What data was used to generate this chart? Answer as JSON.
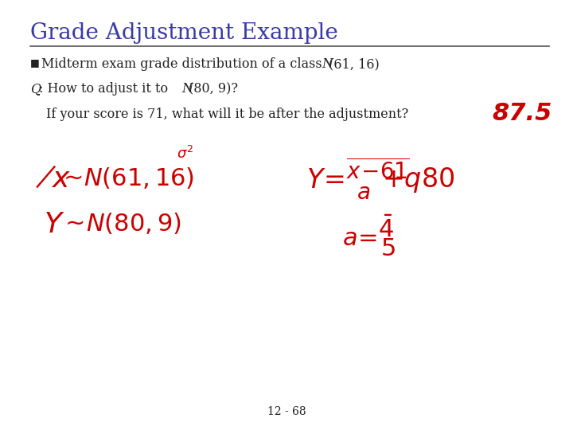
{
  "title": "Grade Adjustment Example",
  "title_color": "#3a3aaa",
  "title_fontsize": 20,
  "background_color": "#ffffff",
  "text_color": "#222222",
  "handwriting_color": "#cc0000",
  "page_number": "12 - 68",
  "bullet_line": "Midterm exam grade distribution of a class N(61, 16)",
  "q_line": "Q: How to adjust it to N(80, 9)?",
  "indent_line": "If your score is 71, what will it be after the adjustment?"
}
